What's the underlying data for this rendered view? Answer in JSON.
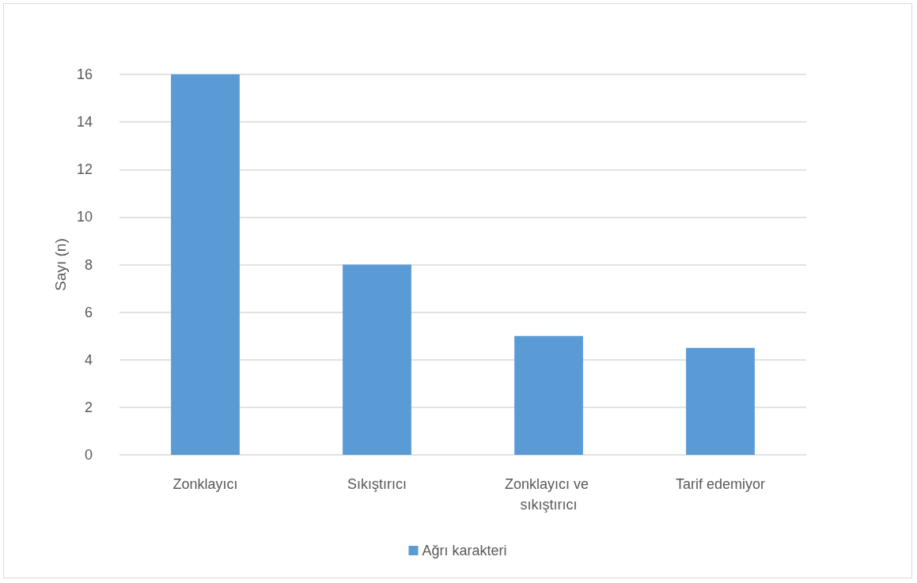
{
  "chart_data": {
    "type": "bar",
    "ylabel": "Sayı (n)",
    "categories": [
      "Zonklayıcı",
      "Sıkıştırıcı",
      "Zonklayıcı ve sıkıştırıcı",
      "Tarif edemiyor"
    ],
    "series": [
      {
        "name": "Ağrı karakteri",
        "color": "#5b9bd5",
        "values": [
          16,
          8,
          5,
          4.5
        ]
      }
    ],
    "ylim": [
      0,
      16
    ],
    "yticks": [
      0,
      2,
      4,
      6,
      8,
      10,
      12,
      14,
      16
    ],
    "grid": "y",
    "legend": "bottom"
  }
}
